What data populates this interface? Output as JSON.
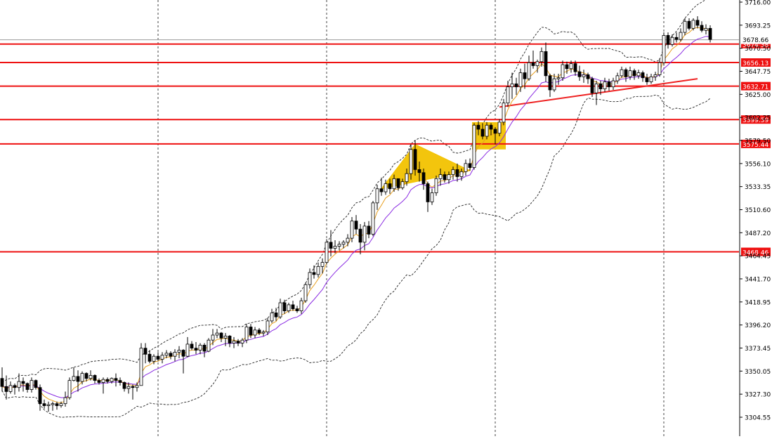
{
  "chart_data": {
    "type": "candlestick",
    "title": "",
    "xlabel": "",
    "ylabel": "",
    "ylim": [
      3293,
      3716
    ],
    "grid": "vertical dotted",
    "y_ticks": [
      "3716.00",
      "3693.25",
      "3670.50",
      "3647.75",
      "3625.00",
      "3602.25",
      "3579.50",
      "3556.10",
      "3533.35",
      "3510.60",
      "3487.20",
      "3464.45",
      "3441.70",
      "3418.95",
      "3396.20",
      "3373.45",
      "3350.05",
      "3327.30",
      "3304.55"
    ],
    "x_vertical_lines_at_bar": [
      37,
      77,
      117,
      157
    ],
    "current_price": "3678.66",
    "current_price_value": 3678.66,
    "levels": [
      {
        "label": "3674.38",
        "value": 3674.38
      },
      {
        "label": "3656.13",
        "value": 3656.13
      },
      {
        "label": "3632.71",
        "value": 3632.71
      },
      {
        "label": "3599.59",
        "value": 3599.59
      },
      {
        "label": "3575.44",
        "value": 3575.44
      },
      {
        "label": "3468.46",
        "value": 3468.46
      }
    ],
    "trendline": {
      "from_bar": 118,
      "from_value": 3612,
      "to_bar": 165,
      "to_value": 3640,
      "color": "#ee2222"
    },
    "patterns": [
      {
        "type": "triangle",
        "color": "#f2c200",
        "points": [
          [
            90,
            3531
          ],
          [
            98,
            3575
          ],
          [
            111,
            3549
          ]
        ]
      },
      {
        "type": "rectangle",
        "color": "#f2c200",
        "bars": [
          112,
          119
        ],
        "low": 3570,
        "high": 3597
      }
    ],
    "candles": [
      [
        3343.0,
        3354.0,
        3330.0,
        3335.0
      ],
      [
        3335.0,
        3346.0,
        3322.0,
        3330.0
      ],
      [
        3330.0,
        3340.0,
        3328.0,
        3336.0
      ],
      [
        3336.0,
        3338.0,
        3327.0,
        3334.0
      ],
      [
        3334.0,
        3348.0,
        3330.0,
        3340.0
      ],
      [
        3340.0,
        3344.0,
        3330.0,
        3338.0
      ],
      [
        3338.0,
        3339.0,
        3329.0,
        3332.0
      ],
      [
        3332.0,
        3344.0,
        3329.0,
        3341.0
      ],
      [
        3341.0,
        3342.0,
        3332.0,
        3334.0
      ],
      [
        3334.0,
        3337.0,
        3311.0,
        3318.0
      ],
      [
        3318.0,
        3322.0,
        3313.0,
        3316.0
      ],
      [
        3316.0,
        3320.0,
        3310.0,
        3317.0
      ],
      [
        3317.0,
        3320.0,
        3311.0,
        3318.0
      ],
      [
        3318.0,
        3320.0,
        3312.0,
        3316.0
      ],
      [
        3316.0,
        3320.0,
        3314.0,
        3318.0
      ],
      [
        3318.0,
        3330.0,
        3315.0,
        3324.0
      ],
      [
        3324.0,
        3344.0,
        3322.0,
        3341.0
      ],
      [
        3341.0,
        3354.0,
        3340.0,
        3345.0
      ],
      [
        3345.0,
        3351.0,
        3330.0,
        3340.0
      ],
      [
        3340.0,
        3350.0,
        3337.0,
        3348.0
      ],
      [
        3348.0,
        3349.0,
        3340.0,
        3343.0
      ],
      [
        3343.0,
        3351.0,
        3341.0,
        3346.0
      ],
      [
        3346.0,
        3347.0,
        3338.0,
        3341.0
      ],
      [
        3341.0,
        3343.0,
        3337.0,
        3339.0
      ],
      [
        3339.0,
        3344.0,
        3328.0,
        3342.0
      ],
      [
        3342.0,
        3344.0,
        3338.0,
        3340.0
      ],
      [
        3340.0,
        3344.0,
        3338.0,
        3343.0
      ],
      [
        3343.0,
        3348.0,
        3335.0,
        3341.0
      ],
      [
        3341.0,
        3344.0,
        3336.0,
        3339.0
      ],
      [
        3339.0,
        3340.0,
        3330.0,
        3333.0
      ],
      [
        3333.0,
        3339.0,
        3328.0,
        3335.0
      ],
      [
        3335.0,
        3337.0,
        3322.0,
        3334.0
      ],
      [
        3334.0,
        3339.0,
        3330.0,
        3336.0
      ],
      [
        3336.0,
        3378.0,
        3336.0,
        3373.0
      ],
      [
        3373.0,
        3378.0,
        3358.0,
        3367.0
      ],
      [
        3367.0,
        3371.0,
        3358.0,
        3360.0
      ],
      [
        3360.0,
        3367.0,
        3357.0,
        3365.0
      ],
      [
        3365.0,
        3369.0,
        3360.0,
        3362.0
      ],
      [
        3362.0,
        3369.0,
        3358.0,
        3366.0
      ],
      [
        3366.0,
        3371.0,
        3363.0,
        3368.0
      ],
      [
        3368.0,
        3370.0,
        3362.0,
        3365.0
      ],
      [
        3365.0,
        3372.0,
        3360.0,
        3369.0
      ],
      [
        3369.0,
        3375.0,
        3363.0,
        3371.0
      ],
      [
        3371.0,
        3372.0,
        3348.0,
        3365.0
      ],
      [
        3365.0,
        3384.0,
        3364.0,
        3377.0
      ],
      [
        3377.0,
        3380.0,
        3371.0,
        3373.0
      ],
      [
        3373.0,
        3379.0,
        3367.0,
        3371.0
      ],
      [
        3371.0,
        3378.0,
        3367.0,
        3376.0
      ],
      [
        3376.0,
        3378.0,
        3364.0,
        3370.0
      ],
      [
        3370.0,
        3383.0,
        3369.0,
        3381.0
      ],
      [
        3381.0,
        3392.0,
        3376.0,
        3386.0
      ],
      [
        3386.0,
        3392.0,
        3383.0,
        3388.0
      ],
      [
        3388.0,
        3389.0,
        3379.0,
        3383.0
      ],
      [
        3383.0,
        3388.0,
        3375.0,
        3385.0
      ],
      [
        3385.0,
        3386.0,
        3374.0,
        3378.0
      ],
      [
        3378.0,
        3384.0,
        3373.0,
        3380.0
      ],
      [
        3380.0,
        3382.0,
        3375.0,
        3378.0
      ],
      [
        3378.0,
        3383.0,
        3374.0,
        3381.0
      ],
      [
        3381.0,
        3397.0,
        3378.0,
        3394.0
      ],
      [
        3394.0,
        3397.0,
        3383.0,
        3386.0
      ],
      [
        3386.0,
        3394.0,
        3383.0,
        3391.0
      ],
      [
        3391.0,
        3393.0,
        3386.0,
        3388.0
      ],
      [
        3388.0,
        3391.0,
        3385.0,
        3389.0
      ],
      [
        3389.0,
        3403.0,
        3386.0,
        3400.0
      ],
      [
        3400.0,
        3412.0,
        3398.0,
        3408.0
      ],
      [
        3408.0,
        3413.0,
        3400.0,
        3404.0
      ],
      [
        3404.0,
        3422.0,
        3402.0,
        3418.0
      ],
      [
        3418.0,
        3421.0,
        3407.0,
        3410.0
      ],
      [
        3410.0,
        3418.0,
        3408.0,
        3416.0
      ],
      [
        3416.0,
        3420.0,
        3410.0,
        3412.0
      ],
      [
        3412.0,
        3415.0,
        3408.0,
        3410.0
      ],
      [
        3410.0,
        3423.0,
        3407.0,
        3420.0
      ],
      [
        3420.0,
        3438.0,
        3418.0,
        3436.0
      ],
      [
        3436.0,
        3452.0,
        3432.0,
        3448.0
      ],
      [
        3448.0,
        3455.0,
        3442.0,
        3446.0
      ],
      [
        3446.0,
        3458.0,
        3443.0,
        3454.0
      ],
      [
        3454.0,
        3462.0,
        3447.0,
        3458.0
      ],
      [
        3458.0,
        3481.0,
        3456.0,
        3478.0
      ],
      [
        3478.0,
        3490.0,
        3464.0,
        3472.0
      ],
      [
        3472.0,
        3480.0,
        3467.0,
        3474.0
      ],
      [
        3474.0,
        3479.0,
        3470.0,
        3476.0
      ],
      [
        3476.0,
        3480.0,
        3472.0,
        3478.0
      ],
      [
        3478.0,
        3486.0,
        3474.0,
        3482.0
      ],
      [
        3482.0,
        3503.0,
        3478.0,
        3499.0
      ],
      [
        3499.0,
        3505.0,
        3486.0,
        3491.0
      ],
      [
        3491.0,
        3496.0,
        3466.0,
        3478.0
      ],
      [
        3478.0,
        3498.0,
        3470.0,
        3494.0
      ],
      [
        3494.0,
        3499.0,
        3482.0,
        3486.0
      ],
      [
        3486.0,
        3519.0,
        3484.0,
        3517.0
      ],
      [
        3517.0,
        3535.0,
        3510.0,
        3531.0
      ],
      [
        3531.0,
        3542.0,
        3524.0,
        3528.0
      ],
      [
        3528.0,
        3540.0,
        3525.0,
        3536.0
      ],
      [
        3536.0,
        3541.0,
        3526.0,
        3531.0
      ],
      [
        3531.0,
        3545.0,
        3528.0,
        3541.0
      ],
      [
        3541.0,
        3541.0,
        3529.0,
        3532.0
      ],
      [
        3532.0,
        3541.0,
        3530.0,
        3538.0
      ],
      [
        3538.0,
        3551.0,
        3534.0,
        3546.0
      ],
      [
        3546.0,
        3575.0,
        3540.0,
        3570.0
      ],
      [
        3570.0,
        3579.0,
        3544.0,
        3550.0
      ],
      [
        3550.0,
        3558.0,
        3538.0,
        3547.0
      ],
      [
        3547.0,
        3551.0,
        3530.0,
        3536.0
      ],
      [
        3536.0,
        3538.0,
        3508.0,
        3518.0
      ],
      [
        3518.0,
        3531.0,
        3515.0,
        3527.0
      ],
      [
        3527.0,
        3544.0,
        3524.0,
        3541.0
      ],
      [
        3541.0,
        3551.0,
        3534.0,
        3545.0
      ],
      [
        3545.0,
        3548.0,
        3537.0,
        3540.0
      ],
      [
        3540.0,
        3548.0,
        3536.0,
        3545.0
      ],
      [
        3545.0,
        3553.0,
        3540.0,
        3550.0
      ],
      [
        3550.0,
        3556.0,
        3538.0,
        3543.0
      ],
      [
        3543.0,
        3551.0,
        3539.0,
        3548.0
      ],
      [
        3548.0,
        3560.0,
        3544.0,
        3556.0
      ],
      [
        3556.0,
        3561.0,
        3549.0,
        3552.0
      ],
      [
        3552.0,
        3596.0,
        3550.0,
        3594.0
      ],
      [
        3594.0,
        3598.0,
        3584.0,
        3590.0
      ],
      [
        3590.0,
        3596.0,
        3580.0,
        3583.0
      ],
      [
        3583.0,
        3597.0,
        3580.0,
        3594.0
      ],
      [
        3594.0,
        3596.0,
        3584.0,
        3590.0
      ],
      [
        3590.0,
        3592.0,
        3575.0,
        3586.0
      ],
      [
        3586.0,
        3600.0,
        3583.0,
        3597.0
      ],
      [
        3597.0,
        3620.0,
        3594.0,
        3616.0
      ],
      [
        3616.0,
        3638.0,
        3612.0,
        3632.0
      ],
      [
        3632.0,
        3646.0,
        3620.0,
        3635.0
      ],
      [
        3635.0,
        3641.0,
        3624.0,
        3632.0
      ],
      [
        3632.0,
        3650.0,
        3627.0,
        3646.0
      ],
      [
        3646.0,
        3655.0,
        3630.0,
        3640.0
      ],
      [
        3640.0,
        3663.0,
        3638.0,
        3656.0
      ],
      [
        3656.0,
        3668.0,
        3650.0,
        3653.0
      ],
      [
        3653.0,
        3659.0,
        3646.0,
        3657.0
      ],
      [
        3657.0,
        3671.0,
        3652.0,
        3667.0
      ],
      [
        3667.0,
        3676.0,
        3637.0,
        3643.0
      ],
      [
        3643.0,
        3645.0,
        3622.0,
        3629.0
      ],
      [
        3629.0,
        3645.0,
        3627.0,
        3640.0
      ],
      [
        3640.0,
        3645.0,
        3634.0,
        3641.0
      ],
      [
        3641.0,
        3658.0,
        3638.0,
        3654.0
      ],
      [
        3654.0,
        3657.0,
        3645.0,
        3650.0
      ],
      [
        3650.0,
        3658.0,
        3646.0,
        3655.0
      ],
      [
        3655.0,
        3658.0,
        3643.0,
        3647.0
      ],
      [
        3647.0,
        3653.0,
        3638.0,
        3642.0
      ],
      [
        3642.0,
        3649.0,
        3636.0,
        3644.0
      ],
      [
        3644.0,
        3646.0,
        3635.0,
        3640.0
      ],
      [
        3640.0,
        3642.0,
        3622.0,
        3626.0
      ],
      [
        3626.0,
        3638.0,
        3614.0,
        3635.0
      ],
      [
        3635.0,
        3638.0,
        3624.0,
        3630.0
      ],
      [
        3630.0,
        3641.0,
        3627.0,
        3637.0
      ],
      [
        3637.0,
        3640.0,
        3628.0,
        3632.0
      ],
      [
        3632.0,
        3641.0,
        3629.0,
        3638.0
      ],
      [
        3638.0,
        3646.0,
        3635.0,
        3643.0
      ],
      [
        3643.0,
        3652.0,
        3641.0,
        3649.0
      ],
      [
        3649.0,
        3651.0,
        3637.0,
        3642.0
      ],
      [
        3642.0,
        3652.0,
        3639.0,
        3648.0
      ],
      [
        3648.0,
        3650.0,
        3639.0,
        3643.0
      ],
      [
        3643.0,
        3649.0,
        3640.0,
        3646.0
      ],
      [
        3646.0,
        3648.0,
        3637.0,
        3641.0
      ],
      [
        3641.0,
        3645.0,
        3634.0,
        3637.0
      ],
      [
        3637.0,
        3645.0,
        3635.0,
        3642.0
      ],
      [
        3642.0,
        3647.0,
        3638.0,
        3644.0
      ],
      [
        3644.0,
        3660.0,
        3642.0,
        3656.0
      ],
      [
        3656.0,
        3686.0,
        3653.0,
        3683.0
      ],
      [
        3683.0,
        3686.0,
        3670.0,
        3674.0
      ],
      [
        3674.0,
        3684.0,
        3672.0,
        3681.0
      ],
      [
        3681.0,
        3686.0,
        3676.0,
        3679.0
      ],
      [
        3679.0,
        3690.0,
        3677.0,
        3686.0
      ],
      [
        3686.0,
        3700.0,
        3683.0,
        3697.0
      ],
      [
        3697.0,
        3700.0,
        3688.0,
        3690.0
      ],
      [
        3690.0,
        3700.0,
        3688.0,
        3698.0
      ],
      [
        3698.0,
        3702.0,
        3690.0,
        3693.0
      ],
      [
        3693.0,
        3697.0,
        3686.0,
        3688.0
      ],
      [
        3688.0,
        3694.0,
        3684.0,
        3690.0
      ],
      [
        3690.0,
        3693.0,
        3676.0,
        3679.0
      ]
    ]
  }
}
